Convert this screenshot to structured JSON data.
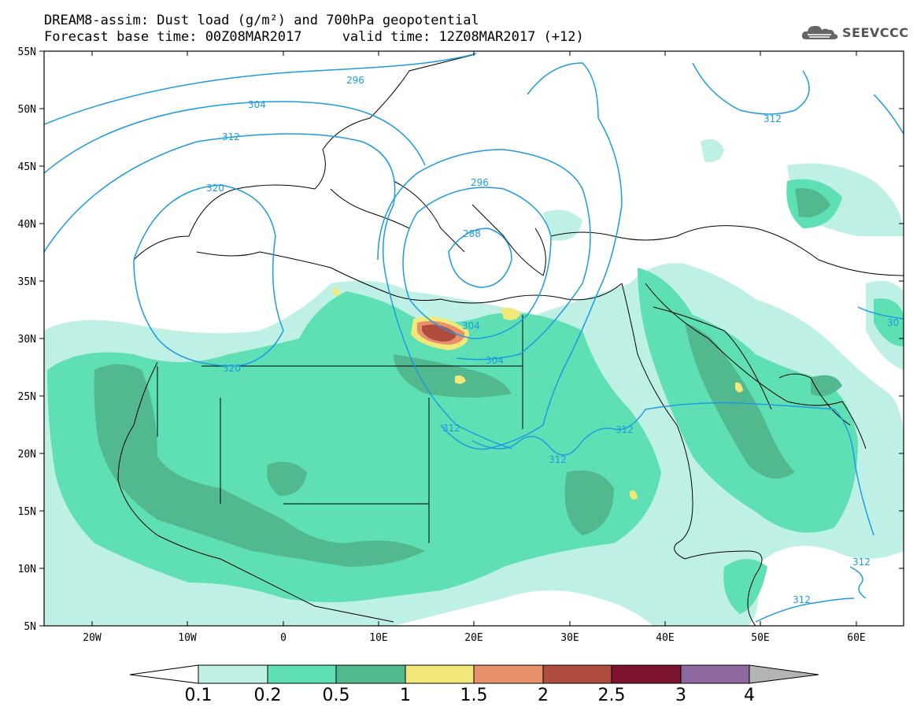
{
  "header": {
    "line1": "DREAM8-assim: Dust load (g/m²) and 700hPa geopotential",
    "line2": "Forecast base time: 00Z08MAR2017     valid time: 12Z08MAR2017 (+12)"
  },
  "logo": {
    "text": "SEEVCCC",
    "icon": "cloud-logo-icon"
  },
  "map": {
    "lat_labels": [
      "55N",
      "50N",
      "45N",
      "40N",
      "35N",
      "30N",
      "25N",
      "20N",
      "15N",
      "10N",
      "5N"
    ],
    "lon_labels": [
      "20W",
      "10W",
      "0",
      "10E",
      "20E",
      "30E",
      "40E",
      "50E",
      "60E"
    ],
    "contour_labels": [
      "296",
      "304",
      "312",
      "320",
      "288",
      "296",
      "304",
      "312",
      "312",
      "312",
      "320",
      "312",
      "30",
      "312",
      "312",
      "304"
    ],
    "colors": {
      "coast": "#000000",
      "contour": "#1e9be0"
    }
  },
  "colorbar": {
    "levels": [
      "0.1",
      "0.2",
      "0.5",
      "1",
      "1.5",
      "2",
      "2.5",
      "3",
      "4"
    ],
    "colors": [
      "#ffffff",
      "#bff0e6",
      "#5ee0b4",
      "#52b88e",
      "#f0e878",
      "#e8906a",
      "#b04c3e",
      "#7c1430",
      "#8c6aa0",
      "#b4b4b4"
    ]
  }
}
